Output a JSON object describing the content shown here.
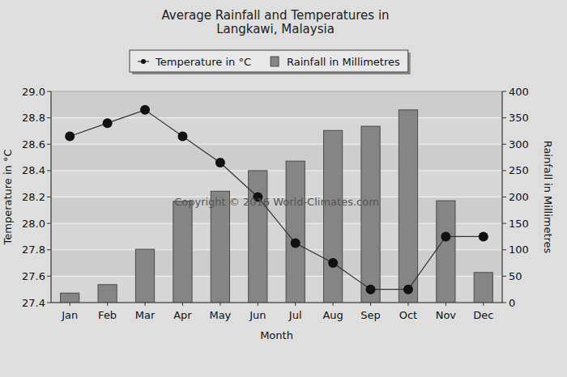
{
  "chart_data": {
    "type": "bar",
    "title": "Average Rainfall and Temperatures in Langkawi, Malaysia",
    "x_label": "Month",
    "y_label": "Temperature in °C",
    "y2_label": "Rainfall in Millimetres",
    "annotations": [
      "Copyright © 2016 World-Climates.com"
    ],
    "categories": [
      "Jan",
      "Feb",
      "Mar",
      "Apr",
      "May",
      "Jun",
      "Jul",
      "Aug",
      "Sep",
      "Oct",
      "Nov",
      "Dec"
    ],
    "series": [
      {
        "name": "Temperature in °C",
        "type": "line",
        "color": "#333333",
        "marker": "circle",
        "values": [
          28.66,
          28.76,
          28.86,
          28.66,
          28.46,
          28.2,
          27.85,
          27.7,
          27.5,
          27.5,
          27.9,
          27.9
        ]
      },
      {
        "name": "Rainfall in Millimetres",
        "type": "bar",
        "color": "#858585",
        "axis": "y2",
        "values": [
          18,
          34,
          101,
          192,
          211,
          250,
          268,
          326,
          334,
          365,
          193,
          57
        ]
      }
    ],
    "ylim": [
      27.4,
      29.0
    ],
    "yticks": [
      27.4,
      27.6,
      27.8,
      {
        "value": 28,
        "label": "28.0"
      },
      28.2,
      28.4,
      28.6,
      28.8,
      {
        "value": 29,
        "label": "29.0"
      }
    ],
    "y2lim": [
      0,
      400
    ],
    "y2ticks": [
      0,
      50,
      100,
      150,
      200,
      250,
      300,
      350,
      400
    ],
    "grid": true,
    "legend": "top"
  }
}
